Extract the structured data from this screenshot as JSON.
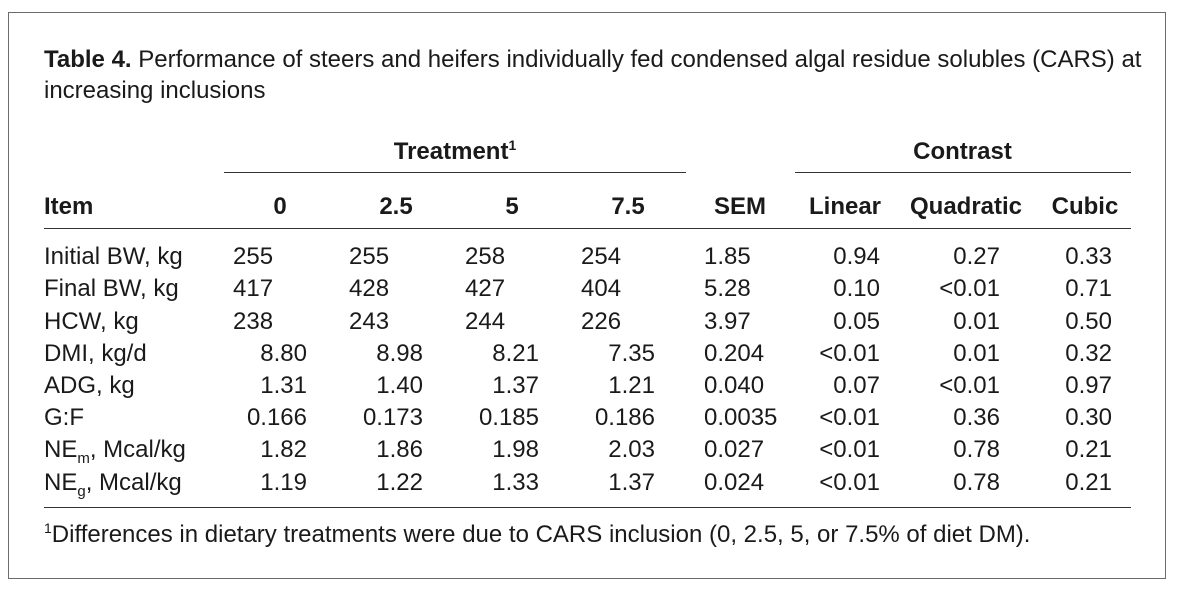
{
  "table": {
    "label": "Table 4.",
    "caption": "Performance of steers and heifers individually fed condensed algal residue solubles (CARS) at increasing inclusions",
    "group_treatment": "Treatment",
    "group_treatment_note": "1",
    "group_contrast": "Contrast",
    "headers": {
      "item": "Item",
      "t0": "0",
      "t25": "2.5",
      "t5": "5",
      "t75": "7.5",
      "sem": "SEM",
      "linear": "Linear",
      "quadratic": "Quadratic",
      "cubic": "Cubic"
    },
    "rows": [
      {
        "item": "Initial BW, kg",
        "t0": "255",
        "t25": "255",
        "t5": "258",
        "t75": "254",
        "sem": "1.85",
        "linear": "0.94",
        "quadratic": "0.27",
        "cubic": "0.33"
      },
      {
        "item": "Final BW, kg",
        "t0": "417",
        "t25": "428",
        "t5": "427",
        "t75": "404",
        "sem": "5.28",
        "linear": "0.10",
        "quadratic": "<0.01",
        "cubic": "0.71"
      },
      {
        "item": "HCW, kg",
        "t0": "238",
        "t25": "243",
        "t5": "244",
        "t75": "226",
        "sem": "3.97",
        "linear": "0.05",
        "quadratic": "0.01",
        "cubic": "0.50"
      },
      {
        "item": "DMI, kg/d",
        "t0": "8.80",
        "t25": "8.98",
        "t5": "8.21",
        "t75": "7.35",
        "sem": "0.204",
        "linear": "<0.01",
        "quadratic": "0.01",
        "cubic": "0.32"
      },
      {
        "item": "ADG, kg",
        "t0": "1.31",
        "t25": "1.40",
        "t5": "1.37",
        "t75": "1.21",
        "sem": "0.040",
        "linear": "0.07",
        "quadratic": "<0.01",
        "cubic": "0.97"
      },
      {
        "item": "G:F",
        "t0": "0.166",
        "t25": "0.173",
        "t5": "0.185",
        "t75": "0.186",
        "sem": "0.0035",
        "linear": "<0.01",
        "quadratic": "0.36",
        "cubic": "0.30"
      },
      {
        "item_base": "NE",
        "item_sub": "m",
        "item_rest": ", Mcal/kg",
        "t0": "1.82",
        "t25": "1.86",
        "t5": "1.98",
        "t75": "2.03",
        "sem": "0.027",
        "linear": "<0.01",
        "quadratic": "0.78",
        "cubic": "0.21"
      },
      {
        "item_base": "NE",
        "item_sub": "g",
        "item_rest": ", Mcal/kg",
        "t0": "1.19",
        "t25": "1.22",
        "t5": "1.33",
        "t75": "1.37",
        "sem": "0.024",
        "linear": "<0.01",
        "quadratic": "0.78",
        "cubic": "0.21"
      }
    ],
    "footnote_mark": "1",
    "footnote": "Differences in dietary treatments were due to CARS inclusion (0, 2.5, 5, or 7.5% of diet DM)."
  }
}
